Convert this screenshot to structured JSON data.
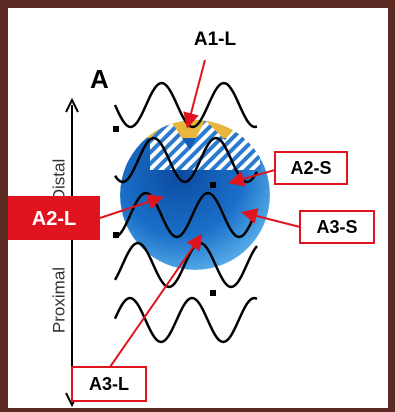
{
  "figure": {
    "panel_letter": "A",
    "axis": {
      "top": "Distal",
      "bottom": "Proximal"
    },
    "labels": {
      "a1_l": "A1-L",
      "a2_s": "A2-S",
      "a2_l": "A2-L",
      "a3_s": "A3-S",
      "a3_l": "A3-L"
    }
  }
}
